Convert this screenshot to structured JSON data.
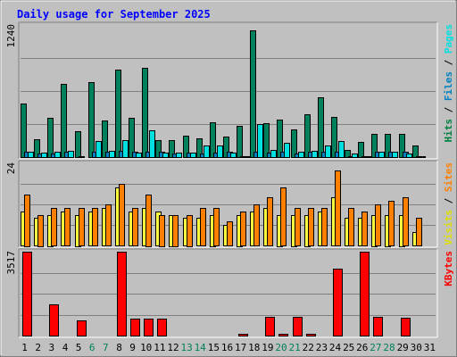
{
  "chart_data": {
    "type": "bar",
    "title": "Daily usage for September 2025",
    "categories": [
      "1",
      "2",
      "3",
      "4",
      "5",
      "6",
      "7",
      "8",
      "9",
      "10",
      "11",
      "12",
      "13",
      "14",
      "15",
      "16",
      "17",
      "18",
      "19",
      "20",
      "21",
      "22",
      "23",
      "24",
      "25",
      "26",
      "27",
      "28",
      "29",
      "30",
      "31"
    ],
    "weekend_days": [
      "6",
      "7",
      "13",
      "14",
      "20",
      "21",
      "27",
      "28"
    ],
    "panels": [
      {
        "max_label": "1240",
        "ymax": 1240,
        "legend": [
          {
            "text": "Hits",
            "color": "#008040"
          },
          {
            "text": " / ",
            "color": "#000000"
          },
          {
            "text": "Files",
            "color": "#0080c0"
          },
          {
            "text": " / ",
            "color": "#000000"
          },
          {
            "text": "Pages",
            "color": "#00e0e0"
          }
        ],
        "series": [
          {
            "name": "Hits",
            "color": "#00805c",
            "values": [
              500,
              170,
              370,
              690,
              240,
              700,
              340,
              820,
              370,
              840,
              160,
              160,
              200,
              180,
              330,
              190,
              290,
              1190,
              320,
              350,
              260,
              400,
              560,
              380,
              70,
              140,
              220,
              220,
              220,
              110,
              0
            ]
          },
          {
            "name": "Files",
            "color": "#0080c0",
            "values": [
              50,
              30,
              30,
              50,
              10,
              50,
              50,
              60,
              50,
              50,
              50,
              30,
              40,
              30,
              40,
              50,
              10,
              50,
              40,
              50,
              30,
              50,
              50,
              50,
              10,
              10,
              50,
              50,
              50,
              10,
              0
            ]
          },
          {
            "name": "Pages",
            "color": "#00e0e0",
            "values": [
              50,
              40,
              50,
              60,
              0,
              150,
              60,
              160,
              40,
              250,
              40,
              40,
              40,
              110,
              110,
              40,
              10,
              310,
              70,
              130,
              50,
              60,
              110,
              150,
              30,
              10,
              50,
              50,
              30,
              10,
              0
            ]
          }
        ]
      },
      {
        "max_label": "24",
        "ymax": 24,
        "legend": [
          {
            "text": "Visits",
            "color": "#e0e000"
          },
          {
            "text": " / ",
            "color": "#000000"
          },
          {
            "text": "Sites",
            "color": "#ff8000"
          }
        ],
        "series": [
          {
            "name": "Visits",
            "color": "#ffff40",
            "values": [
              10,
              8,
              9,
              10,
              9,
              10,
              11,
              17,
              10,
              11,
              10,
              9,
              8,
              8,
              9,
              6,
              9,
              10,
              11,
              9,
              9,
              9,
              10,
              14,
              8,
              8,
              9,
              9,
              9,
              4,
              0
            ]
          },
          {
            "name": "Sites",
            "color": "#ff8000",
            "values": [
              15,
              9,
              11,
              11,
              11,
              11,
              12,
              18,
              11,
              15,
              9,
              9,
              9,
              11,
              11,
              7,
              10,
              12,
              14,
              17,
              11,
              11,
              11,
              22,
              11,
              10,
              12,
              13,
              14,
              8,
              0
            ]
          }
        ]
      },
      {
        "max_label": "3517",
        "ymax": 3517,
        "legend": [
          {
            "text": "KBytes",
            "color": "#ff0000"
          }
        ],
        "series": [
          {
            "name": "KBytes",
            "color": "#ff0000",
            "values": [
              3517,
              0,
              1300,
              0,
              650,
              0,
              0,
              3517,
              720,
              720,
              700,
              0,
              0,
              0,
              0,
              0,
              80,
              0,
              800,
              80,
              800,
              80,
              0,
              2800,
              0,
              3517,
              800,
              0,
              750,
              0,
              0
            ]
          }
        ]
      }
    ]
  }
}
